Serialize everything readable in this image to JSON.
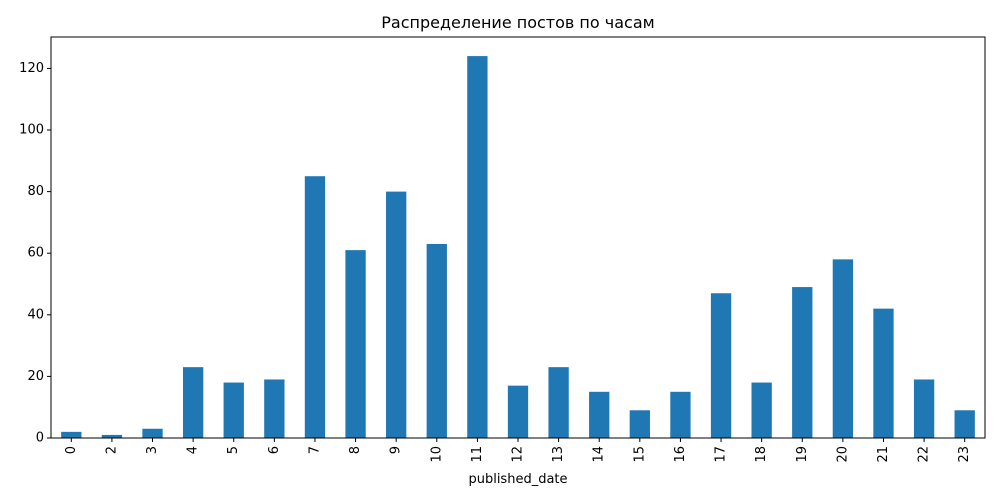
{
  "chart_data": {
    "type": "bar",
    "title": "Распределение постов по часам",
    "xlabel": "published_date",
    "ylabel": "",
    "categories": [
      "0",
      "2",
      "3",
      "4",
      "5",
      "6",
      "7",
      "8",
      "9",
      "10",
      "11",
      "12",
      "13",
      "14",
      "15",
      "16",
      "17",
      "18",
      "19",
      "20",
      "21",
      "22",
      "23"
    ],
    "values": [
      2,
      1,
      3,
      23,
      18,
      19,
      85,
      61,
      80,
      63,
      124,
      17,
      23,
      15,
      9,
      15,
      47,
      18,
      49,
      58,
      42,
      19,
      9
    ],
    "ylim": [
      0,
      130.2
    ],
    "yticks": [
      0,
      20,
      40,
      60,
      80,
      100,
      120
    ],
    "grid": false,
    "bar_color": "#1f77b4"
  }
}
